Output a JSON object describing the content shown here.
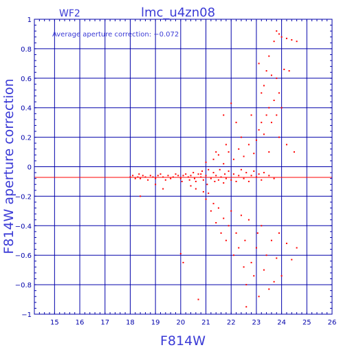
{
  "chart_data": {
    "type": "scatter",
    "panel_label": "WF2",
    "title": "lmc_u4zn08",
    "annotation": "Average aperture correction: −0.072",
    "xlabel": "F814W",
    "ylabel": "F814W aperture correction",
    "xlim": [
      14.2,
      26
    ],
    "ylim": [
      -1,
      1
    ],
    "x_ticks": [
      "15",
      "16",
      "17",
      "18",
      "19",
      "20",
      "21",
      "22",
      "23",
      "24",
      "25",
      "26"
    ],
    "y_ticks": [
      "1",
      "0.8",
      "0.6",
      "0.4",
      "0.2",
      "0",
      "−0.2",
      "−0.4",
      "−0.6",
      "−0.8",
      "−1"
    ],
    "grid": true,
    "reference_line": {
      "y": -0.072,
      "color": "#ff0000"
    },
    "colors": {
      "axes": "#0000aa",
      "grid": "#0000aa",
      "text": "#3a3ad6",
      "points": "#ff0000"
    },
    "points": [
      [
        18.0,
        -0.07
      ],
      [
        18.1,
        -0.06
      ],
      [
        18.2,
        -0.08
      ],
      [
        18.3,
        -0.07
      ],
      [
        18.35,
        -0.05
      ],
      [
        18.4,
        -0.08
      ],
      [
        18.5,
        -0.06
      ],
      [
        18.6,
        -0.07
      ],
      [
        18.7,
        -0.09
      ],
      [
        18.8,
        -0.06
      ],
      [
        18.9,
        -0.07
      ],
      [
        19.0,
        -0.08
      ],
      [
        19.1,
        -0.06
      ],
      [
        19.2,
        -0.05
      ],
      [
        19.3,
        -0.07
      ],
      [
        19.4,
        -0.09
      ],
      [
        19.5,
        -0.06
      ],
      [
        19.6,
        -0.08
      ],
      [
        19.7,
        -0.07
      ],
      [
        19.8,
        -0.05
      ],
      [
        19.9,
        -0.06
      ],
      [
        20.0,
        -0.08
      ],
      [
        20.05,
        -0.1
      ],
      [
        20.1,
        -0.06
      ],
      [
        20.2,
        -0.05
      ],
      [
        20.3,
        -0.07
      ],
      [
        20.35,
        -0.09
      ],
      [
        20.4,
        -0.06
      ],
      [
        20.5,
        -0.04
      ],
      [
        20.55,
        -0.08
      ],
      [
        20.6,
        -0.1
      ],
      [
        20.7,
        -0.05
      ],
      [
        20.8,
        -0.07
      ],
      [
        20.85,
        -0.03
      ],
      [
        20.9,
        -0.09
      ],
      [
        21.0,
        -0.06
      ],
      [
        21.05,
        -0.12
      ],
      [
        21.1,
        -0.02
      ],
      [
        21.2,
        -0.08
      ],
      [
        21.3,
        -0.04
      ],
      [
        21.35,
        -0.1
      ],
      [
        21.4,
        -0.06
      ],
      [
        21.5,
        -0.09
      ],
      [
        21.55,
        -0.02
      ],
      [
        21.6,
        -0.07
      ],
      [
        21.7,
        -0.11
      ],
      [
        21.75,
        -0.05
      ],
      [
        21.8,
        -0.08
      ],
      [
        21.9,
        -0.03
      ],
      [
        22.0,
        -0.09
      ],
      [
        22.1,
        -0.05
      ],
      [
        22.2,
        -0.1
      ],
      [
        22.3,
        -0.06
      ],
      [
        22.4,
        -0.02
      ],
      [
        22.5,
        -0.08
      ],
      [
        22.6,
        -0.04
      ],
      [
        22.7,
        -0.1
      ],
      [
        22.8,
        -0.06
      ],
      [
        22.9,
        -0.03
      ],
      [
        23.0,
        -0.07
      ],
      [
        23.1,
        -0.05
      ],
      [
        23.2,
        -0.09
      ],
      [
        23.3,
        -0.04
      ],
      [
        23.5,
        -0.06
      ],
      [
        23.7,
        -0.08
      ],
      [
        18.4,
        -0.2
      ],
      [
        19.0,
        -0.12
      ],
      [
        19.3,
        -0.15
      ],
      [
        20.0,
        -0.59
      ],
      [
        20.1,
        -0.65
      ],
      [
        20.4,
        -0.13
      ],
      [
        20.6,
        -0.15
      ],
      [
        20.8,
        -0.05
      ],
      [
        20.7,
        -0.9
      ],
      [
        20.9,
        -0.17
      ],
      [
        21.0,
        -0.22
      ],
      [
        21.1,
        -0.18
      ],
      [
        21.2,
        -0.3
      ],
      [
        21.3,
        -0.25
      ],
      [
        21.4,
        -0.38
      ],
      [
        21.5,
        -0.28
      ],
      [
        21.6,
        -0.45
      ],
      [
        21.7,
        -0.35
      ],
      [
        21.8,
        -0.5
      ],
      [
        21.9,
        -0.4
      ],
      [
        22.0,
        -0.3
      ],
      [
        22.1,
        -0.6
      ],
      [
        22.2,
        -0.45
      ],
      [
        22.3,
        -0.55
      ],
      [
        22.4,
        -0.33
      ],
      [
        22.5,
        -0.68
      ],
      [
        22.55,
        -0.5
      ],
      [
        22.6,
        -0.8
      ],
      [
        22.7,
        -0.36
      ],
      [
        22.8,
        -0.65
      ],
      [
        22.9,
        -0.74
      ],
      [
        23.0,
        -0.55
      ],
      [
        23.05,
        -0.45
      ],
      [
        23.1,
        -0.88
      ],
      [
        23.2,
        -0.4
      ],
      [
        23.3,
        -0.7
      ],
      [
        23.4,
        -0.6
      ],
      [
        23.5,
        -0.83
      ],
      [
        23.6,
        -0.5
      ],
      [
        23.7,
        -0.78
      ],
      [
        23.8,
        -0.62
      ],
      [
        23.9,
        -0.45
      ],
      [
        24.0,
        -0.74
      ],
      [
        24.2,
        -0.52
      ],
      [
        24.4,
        -0.63
      ],
      [
        24.6,
        -0.55
      ],
      [
        22.6,
        -0.95
      ],
      [
        21.0,
        0.03
      ],
      [
        21.3,
        0.05
      ],
      [
        21.5,
        0.08
      ],
      [
        21.7,
        0.02
      ],
      [
        21.9,
        0.1
      ],
      [
        22.1,
        0.05
      ],
      [
        22.3,
        0.12
      ],
      [
        22.5,
        0.07
      ],
      [
        22.7,
        0.15
      ],
      [
        22.9,
        0.09
      ],
      [
        23.0,
        0.18
      ],
      [
        23.1,
        0.25
      ],
      [
        23.2,
        0.3
      ],
      [
        23.3,
        0.22
      ],
      [
        23.4,
        0.35
      ],
      [
        23.5,
        0.4
      ],
      [
        23.6,
        0.3
      ],
      [
        23.7,
        0.45
      ],
      [
        23.8,
        0.35
      ],
      [
        23.9,
        0.5
      ],
      [
        24.0,
        0.4
      ],
      [
        23.2,
        0.5
      ],
      [
        23.3,
        0.55
      ],
      [
        23.4,
        0.65
      ],
      [
        23.1,
        0.7
      ],
      [
        23.5,
        0.75
      ],
      [
        23.6,
        0.62
      ],
      [
        23.7,
        0.85
      ],
      [
        23.8,
        0.92
      ],
      [
        23.9,
        0.9
      ],
      [
        24.0,
        0.88
      ],
      [
        24.2,
        0.87
      ],
      [
        24.4,
        0.86
      ],
      [
        24.6,
        0.85
      ],
      [
        22.0,
        0.43
      ],
      [
        21.7,
        0.35
      ],
      [
        22.2,
        0.3
      ],
      [
        22.8,
        0.35
      ],
      [
        23.8,
        0.6
      ],
      [
        24.1,
        0.66
      ],
      [
        24.3,
        0.65
      ],
      [
        23.9,
        0.2
      ],
      [
        24.2,
        0.15
      ],
      [
        24.5,
        0.1
      ],
      [
        23.5,
        0.1
      ],
      [
        22.4,
        0.2
      ],
      [
        21.8,
        0.15
      ],
      [
        21.4,
        0.1
      ]
    ]
  }
}
